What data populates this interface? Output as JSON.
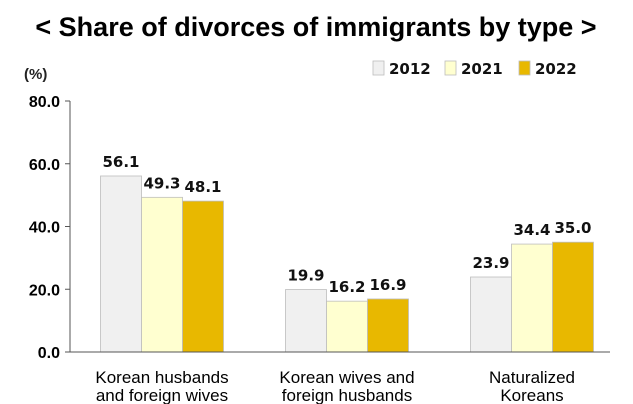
{
  "chart_data": {
    "type": "bar",
    "title": "< Share of divorces of immigrants by type >",
    "unit_label": "(%)",
    "categories": [
      [
        "Korean husbands",
        "and foreign wives"
      ],
      [
        "Korean wives and",
        "foreign husbands"
      ],
      [
        "Naturalized",
        "Koreans"
      ]
    ],
    "series": [
      {
        "name": "2012",
        "color": "#f0f0f0",
        "values": [
          56.1,
          19.9,
          23.9
        ]
      },
      {
        "name": "2021",
        "color": "#ffffd0",
        "values": [
          49.3,
          16.2,
          34.4
        ]
      },
      {
        "name": "2022",
        "color": "#e8b800",
        "values": [
          48.1,
          16.9,
          35.0
        ]
      }
    ],
    "value_labels": [
      [
        "56.1",
        "19.9",
        "23.9"
      ],
      [
        "49.3",
        "16.2",
        "34.4"
      ],
      [
        "48.1",
        "16.9",
        "35.0"
      ]
    ],
    "ylim": [
      0,
      80
    ],
    "yticks": [
      "0.0",
      "20.0",
      "40.0",
      "60.0",
      "80.0"
    ],
    "ytick_values": [
      0,
      20,
      40,
      60,
      80
    ],
    "legend_position": "top-right",
    "grid": false
  }
}
